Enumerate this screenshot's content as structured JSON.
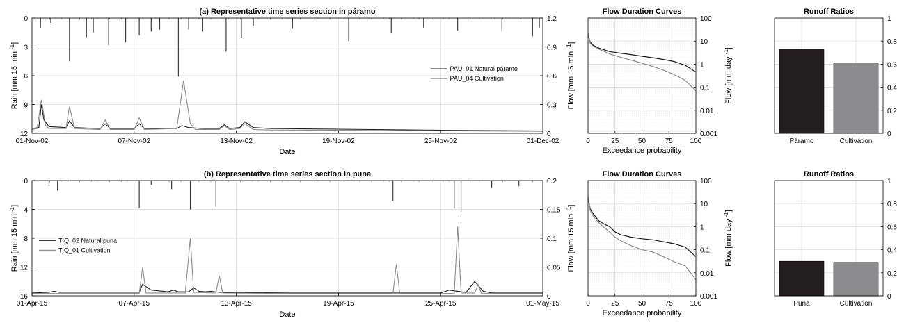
{
  "chart_data": [
    {
      "type": "line",
      "panel": "a",
      "title": "(a) Representative time series section in páramo",
      "xlabel": "Date",
      "ylabel_left": "Rain [mm 15 min",
      "ylabel_right": "Flow [mm 15 min",
      "ylabel_sup": "-1",
      "x_ticks": [
        "01-Nov-02",
        "07-Nov-02",
        "13-Nov-02",
        "19-Nov-02",
        "25-Nov-02",
        "01-Dec-02"
      ],
      "x_range_days": [
        0,
        30
      ],
      "rain_ticks": [
        "0",
        "3",
        "6",
        "9",
        "12"
      ],
      "rain_range": [
        0,
        12
      ],
      "rain_inverted": true,
      "flow_ticks": [
        "0",
        "0.3",
        "0.6",
        "0.9",
        "1.2"
      ],
      "flow_range": [
        0,
        1.2
      ],
      "grid": true,
      "legend_position": "center-right",
      "series": [
        {
          "name": "PAU_01 Natural páramo",
          "color": "#1a1a1a",
          "values": [
            [
              0,
              0.05
            ],
            [
              0.4,
              0.06
            ],
            [
              0.55,
              0.3
            ],
            [
              0.7,
              0.14
            ],
            [
              1,
              0.07
            ],
            [
              2,
              0.06
            ],
            [
              2.2,
              0.13
            ],
            [
              2.5,
              0.06
            ],
            [
              4,
              0.05
            ],
            [
              4.3,
              0.1
            ],
            [
              4.6,
              0.05
            ],
            [
              6,
              0.05
            ],
            [
              6.3,
              0.1
            ],
            [
              6.6,
              0.05
            ],
            [
              8.5,
              0.05
            ],
            [
              8.8,
              0.08
            ],
            [
              9.2,
              0.06
            ],
            [
              10,
              0.05
            ],
            [
              11,
              0.05
            ],
            [
              11.3,
              0.09
            ],
            [
              11.6,
              0.05
            ],
            [
              12.2,
              0.06
            ],
            [
              12.5,
              0.12
            ],
            [
              13,
              0.06
            ],
            [
              14,
              0.05
            ],
            [
              20,
              0.04
            ],
            [
              25,
              0.03
            ],
            [
              30,
              0.025
            ]
          ]
        },
        {
          "name": "PAU_04 Cultivation",
          "color": "#8a8a8a",
          "values": [
            [
              0,
              0.04
            ],
            [
              0.3,
              0.05
            ],
            [
              0.55,
              0.35
            ],
            [
              0.8,
              0.08
            ],
            [
              1,
              0.05
            ],
            [
              2,
              0.05
            ],
            [
              2.2,
              0.28
            ],
            [
              2.5,
              0.05
            ],
            [
              4,
              0.04
            ],
            [
              4.3,
              0.14
            ],
            [
              4.6,
              0.04
            ],
            [
              6,
              0.04
            ],
            [
              6.3,
              0.16
            ],
            [
              6.6,
              0.04
            ],
            [
              8.5,
              0.05
            ],
            [
              8.9,
              0.55
            ],
            [
              9.3,
              0.1
            ],
            [
              9.6,
              0.04
            ],
            [
              11,
              0.04
            ],
            [
              11.3,
              0.08
            ],
            [
              11.6,
              0.04
            ],
            [
              12.2,
              0.05
            ],
            [
              12.5,
              0.1
            ],
            [
              13,
              0.04
            ],
            [
              14,
              0.035
            ],
            [
              20,
              0.03
            ],
            [
              25,
              0.025
            ],
            [
              30,
              0.02
            ]
          ]
        }
      ],
      "rain_events": [
        [
          0.5,
          1
        ],
        [
          1.1,
          0.5
        ],
        [
          2.2,
          4.5
        ],
        [
          3.2,
          2
        ],
        [
          3.6,
          1.5
        ],
        [
          4.5,
          2.8
        ],
        [
          5.5,
          2.5
        ],
        [
          6.3,
          1.8
        ],
        [
          7.0,
          1.4
        ],
        [
          7.5,
          1.2
        ],
        [
          8.6,
          6.1
        ],
        [
          9.2,
          1.2
        ],
        [
          10,
          1.4
        ],
        [
          11.4,
          3.5
        ],
        [
          12.3,
          2.1
        ],
        [
          13.0,
          0.8
        ],
        [
          15.3,
          1.1
        ],
        [
          18.6,
          2.4
        ],
        [
          21.1,
          1.6
        ],
        [
          23.0,
          1.0
        ],
        [
          25.0,
          1.3
        ],
        [
          27.6,
          1.4
        ],
        [
          29.4,
          1.9
        ],
        [
          29.8,
          1.0
        ]
      ],
      "rain_color": "#3c3c3c"
    },
    {
      "type": "line",
      "panel": "a-fdc",
      "title": "Flow Duration Curves",
      "xlabel": "Exceedance probability",
      "ylabel": "Flow [mm day",
      "ylabel_sup": "-1",
      "x_ticks": [
        "0",
        "25",
        "50",
        "75",
        "100"
      ],
      "xlim": [
        0,
        100
      ],
      "y_scale": "log",
      "y_ticks": [
        "0.001",
        "0.01",
        "0.1",
        "1",
        "10",
        "100"
      ],
      "ylim": [
        0.001,
        100
      ],
      "series": [
        {
          "name": "PAU_01 Natural páramo",
          "color": "#1a1a1a",
          "values": [
            [
              0,
              20
            ],
            [
              2,
              9
            ],
            [
              5,
              6.5
            ],
            [
              10,
              5
            ],
            [
              20,
              3.5
            ],
            [
              30,
              3
            ],
            [
              40,
              2.6
            ],
            [
              50,
              2.2
            ],
            [
              60,
              1.9
            ],
            [
              70,
              1.6
            ],
            [
              80,
              1.3
            ],
            [
              90,
              0.9
            ],
            [
              100,
              0.45
            ]
          ]
        },
        {
          "name": "PAU_04 Cultivation",
          "color": "#8a8a8a",
          "values": [
            [
              0,
              22
            ],
            [
              2,
              8
            ],
            [
              5,
              6
            ],
            [
              10,
              4.5
            ],
            [
              20,
              2.8
            ],
            [
              30,
              2
            ],
            [
              40,
              1.5
            ],
            [
              50,
              1.1
            ],
            [
              60,
              0.8
            ],
            [
              70,
              0.55
            ],
            [
              80,
              0.35
            ],
            [
              90,
              0.2
            ],
            [
              100,
              0.07
            ]
          ]
        }
      ]
    },
    {
      "type": "bar",
      "panel": "a-rr",
      "title": "Runoff Ratios",
      "categories": [
        "Páramo",
        "Cultivation"
      ],
      "values": [
        0.73,
        0.61
      ],
      "colors": [
        "#231f20",
        "#8c8c8f"
      ],
      "ylim": [
        0,
        1
      ],
      "y_ticks": [
        "0",
        "0.2",
        "0.4",
        "0.6",
        "0.8",
        "1"
      ]
    },
    {
      "type": "line",
      "panel": "b",
      "title": "(b) Representative time series section in puna",
      "xlabel": "Date",
      "ylabel_left": "Rain [mm 15 min",
      "ylabel_right": "Flow [mm 15 min",
      "ylabel_sup": "-1",
      "x_ticks": [
        "01-Apr-15",
        "07-Apr-15",
        "13-Apr-15",
        "19-Apr-15",
        "25-Apr-15",
        "01-May-15"
      ],
      "x_range_days": [
        0,
        30
      ],
      "rain_ticks": [
        "0",
        "4",
        "8",
        "12",
        "16"
      ],
      "rain_range": [
        0,
        16
      ],
      "rain_inverted": true,
      "flow_ticks": [
        "0",
        "0.05",
        "0.1",
        "0.15",
        "0.2"
      ],
      "flow_range": [
        0,
        0.2
      ],
      "grid": true,
      "legend_position": "center-left",
      "series": [
        {
          "name": "TIQ_02 Natural puna",
          "color": "#1a1a1a",
          "values": [
            [
              0,
              0.005
            ],
            [
              1,
              0.006
            ],
            [
              1.3,
              0.008
            ],
            [
              1.6,
              0.006
            ],
            [
              5,
              0.006
            ],
            [
              6.3,
              0.006
            ],
            [
              6.5,
              0.02
            ],
            [
              7,
              0.01
            ],
            [
              8,
              0.007
            ],
            [
              8.3,
              0.01
            ],
            [
              8.6,
              0.007
            ],
            [
              9.2,
              0.007
            ],
            [
              9.5,
              0.014
            ],
            [
              9.8,
              0.008
            ],
            [
              10.2,
              0.007
            ],
            [
              10.5,
              0.008
            ],
            [
              11,
              0.006
            ],
            [
              15,
              0.005
            ],
            [
              20,
              0.005
            ],
            [
              22,
              0.005
            ],
            [
              24,
              0.005
            ],
            [
              24.5,
              0.01
            ],
            [
              25,
              0.008
            ],
            [
              25.5,
              0.006
            ],
            [
              26,
              0.025
            ],
            [
              26.5,
              0.008
            ],
            [
              27,
              0.005
            ],
            [
              30,
              0.005
            ]
          ]
        },
        {
          "name": "TIQ_01 Cultivation",
          "color": "#8a8a8a",
          "values": [
            [
              0,
              0.004
            ],
            [
              1,
              0.004
            ],
            [
              5,
              0.004
            ],
            [
              6.3,
              0.004
            ],
            [
              6.5,
              0.05
            ],
            [
              6.7,
              0.005
            ],
            [
              9,
              0.005
            ],
            [
              9.3,
              0.1
            ],
            [
              9.5,
              0.006
            ],
            [
              10.8,
              0.005
            ],
            [
              11,
              0.035
            ],
            [
              11.2,
              0.005
            ],
            [
              15,
              0.004
            ],
            [
              21.2,
              0.004
            ],
            [
              21.4,
              0.055
            ],
            [
              21.6,
              0.004
            ],
            [
              24.8,
              0.004
            ],
            [
              25,
              0.12
            ],
            [
              25.2,
              0.005
            ],
            [
              26,
              0.005
            ],
            [
              26.2,
              0.02
            ],
            [
              26.4,
              0.004
            ],
            [
              30,
              0.004
            ]
          ]
        }
      ],
      "rain_events": [
        [
          1.0,
          0.8
        ],
        [
          1.5,
          1.4
        ],
        [
          6.3,
          3.8
        ],
        [
          7.0,
          0.6
        ],
        [
          8.2,
          1.2
        ],
        [
          9.3,
          4.0
        ],
        [
          10.8,
          3.6
        ],
        [
          21.2,
          2.8
        ],
        [
          24.8,
          3.9
        ],
        [
          25.2,
          4.3
        ],
        [
          27.0,
          1.0
        ],
        [
          28.6,
          0.8
        ]
      ],
      "rain_color": "#3c3c3c"
    },
    {
      "type": "line",
      "panel": "b-fdc",
      "title": "Flow Duration Curves",
      "xlabel": "Exceedance probability",
      "ylabel": "Flow [mm day",
      "ylabel_sup": "-1",
      "x_ticks": [
        "0",
        "25",
        "50",
        "75",
        "100"
      ],
      "xlim": [
        0,
        100
      ],
      "y_scale": "log",
      "y_ticks": [
        "0.001",
        "0.01",
        "0.1",
        "1",
        "10",
        "100"
      ],
      "ylim": [
        0.001,
        100
      ],
      "series": [
        {
          "name": "TIQ_02 Natural puna",
          "color": "#1a1a1a",
          "values": [
            [
              0,
              18
            ],
            [
              2,
              6
            ],
            [
              5,
              3.5
            ],
            [
              10,
              1.8
            ],
            [
              15,
              1.3
            ],
            [
              20,
              1
            ],
            [
              25,
              0.6
            ],
            [
              30,
              0.45
            ],
            [
              40,
              0.35
            ],
            [
              50,
              0.3
            ],
            [
              60,
              0.27
            ],
            [
              70,
              0.22
            ],
            [
              80,
              0.18
            ],
            [
              90,
              0.13
            ],
            [
              100,
              0.05
            ]
          ]
        },
        {
          "name": "TIQ_01 Cultivation",
          "color": "#8a8a8a",
          "values": [
            [
              0,
              22
            ],
            [
              2,
              5
            ],
            [
              5,
              2.8
            ],
            [
              10,
              1.5
            ],
            [
              15,
              0.9
            ],
            [
              20,
              0.6
            ],
            [
              25,
              0.35
            ],
            [
              30,
              0.25
            ],
            [
              40,
              0.15
            ],
            [
              50,
              0.1
            ],
            [
              60,
              0.08
            ],
            [
              70,
              0.05
            ],
            [
              80,
              0.03
            ],
            [
              90,
              0.02
            ],
            [
              100,
              0.005
            ]
          ]
        }
      ]
    },
    {
      "type": "bar",
      "panel": "b-rr",
      "title": "Runoff Ratios",
      "categories": [
        "Puna",
        "Cultivation"
      ],
      "values": [
        0.3,
        0.29
      ],
      "colors": [
        "#231f20",
        "#8c8c8f"
      ],
      "ylim": [
        0,
        1
      ],
      "y_ticks": [
        "0",
        "0.2",
        "0.4",
        "0.6",
        "0.8",
        "1"
      ]
    }
  ]
}
